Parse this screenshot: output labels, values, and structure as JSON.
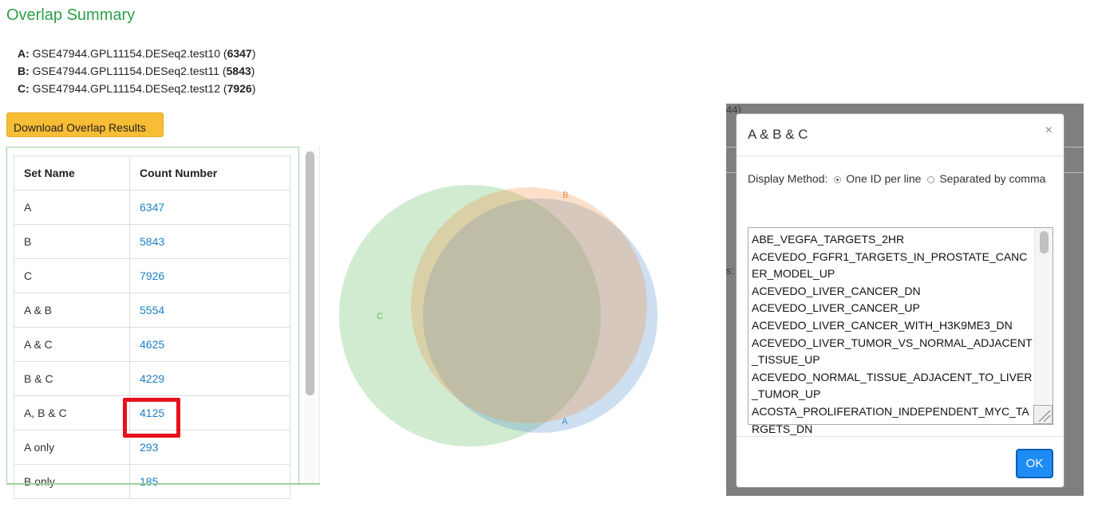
{
  "page_title": "Overlap Summary",
  "sets": [
    {
      "key": "A:",
      "name": "GSE47944.GPL11154.DESeq2.test10",
      "open": " (",
      "count": "6347",
      "close": ")"
    },
    {
      "key": "B:",
      "name": "GSE47944.GPL11154.DESeq2.test11",
      "open": " (",
      "count": "5843",
      "close": ")"
    },
    {
      "key": "C:",
      "name": "GSE47944.GPL11154.DESeq2.test12",
      "open": " (",
      "count": "7926",
      "close": ")"
    }
  ],
  "download_button": "Download Overlap Results",
  "table": {
    "headers": [
      "Set Name",
      "Count Number"
    ],
    "rows": [
      {
        "name": "A",
        "count": "6347"
      },
      {
        "name": "B",
        "count": "5843"
      },
      {
        "name": "C",
        "count": "7926"
      },
      {
        "name": "A & B",
        "count": "5554"
      },
      {
        "name": "A & C",
        "count": "4625"
      },
      {
        "name": "B & C",
        "count": "4229"
      },
      {
        "name": "A, B & C",
        "count": "4125"
      },
      {
        "name": "A only",
        "count": "293"
      },
      {
        "name": "B only",
        "count": "185"
      }
    ]
  },
  "venn": {
    "labels": {
      "a": "A",
      "b": "B",
      "c": "C"
    },
    "colors": {
      "a": "#4a8bc9",
      "b": "#f28c3c",
      "c": "#5bb85b"
    }
  },
  "overlay_partial": {
    "top_text": "44)",
    "side_text": "s:"
  },
  "modal": {
    "title": "A & B & C",
    "close": "×",
    "display_method_label": "Display Method:",
    "option_one_id": "One ID per line",
    "option_comma": "Separated by comma",
    "ids": [
      "ABE_VEGFA_TARGETS_2HR",
      "ACEVEDO_FGFR1_TARGETS_IN_PROSTATE_CANCER_MODEL_UP",
      "ACEVEDO_LIVER_CANCER_DN",
      "ACEVEDO_LIVER_CANCER_UP",
      "ACEVEDO_LIVER_CANCER_WITH_H3K9ME3_DN",
      "ACEVEDO_LIVER_TUMOR_VS_NORMAL_ADJACENT_TISSUE_UP",
      "ACEVEDO_NORMAL_TISSUE_ADJACENT_TO_LIVER_TUMOR_UP",
      "ACOSTA_PROLIFERATION_INDEPENDENT_MYC_TARGETS_DN"
    ],
    "ok_button": "OK"
  }
}
